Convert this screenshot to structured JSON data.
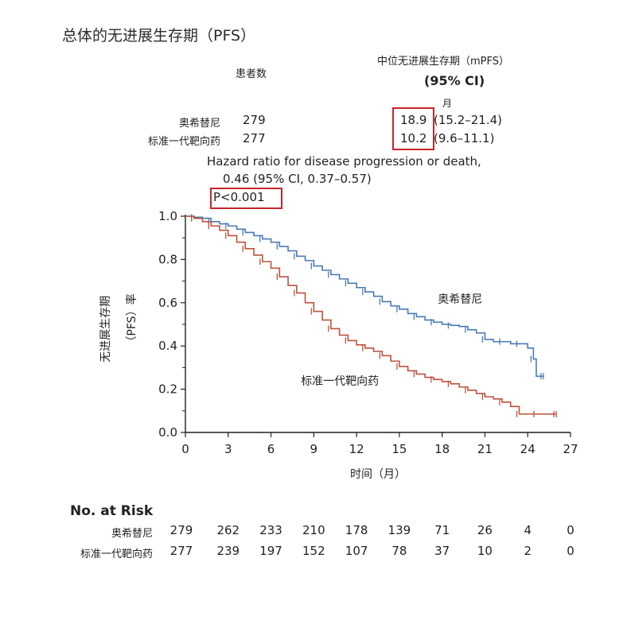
{
  "title": "总体的无进展生存期（PFS）",
  "header": {
    "patients": "患者数",
    "median": "中位无进展生存期（mPFS）",
    "ci": "(95% CI)",
    "month": "月"
  },
  "groups": [
    {
      "label": "奥希替尼",
      "n": "279",
      "median": "18.9",
      "ci": "(15.2–21.4)"
    },
    {
      "label": "标准一代靶向药",
      "n": "277",
      "median": "10.2",
      "ci": "(9.6–11.1)"
    }
  ],
  "hazard": {
    "line1": "Hazard ratio for disease progression or death,",
    "line2": "0.46 (95% CI, 0.37–0.57)",
    "p": "P<0.001"
  },
  "chart_data": {
    "type": "line",
    "ylabel_line1": "无进展生存期",
    "ylabel_line2": "（PFS）率",
    "xlabel": "时间（月）",
    "xlim": [
      0,
      27
    ],
    "ylim": [
      0,
      1.0
    ],
    "xticks": [
      0,
      3,
      6,
      9,
      12,
      15,
      18,
      21,
      24,
      27
    ],
    "yticks": [
      "0.0",
      "0.2",
      "0.4",
      "0.6",
      "0.8",
      "1.0"
    ],
    "series": [
      {
        "name": "奥希替尼",
        "color": "#4a7ab5",
        "x": [
          0,
          0.6,
          1.2,
          1.8,
          2.4,
          3.0,
          3.6,
          4.2,
          4.8,
          5.4,
          6.0,
          6.6,
          7.2,
          7.8,
          8.4,
          9.0,
          9.6,
          10.2,
          10.8,
          11.4,
          12.0,
          12.6,
          13.2,
          13.8,
          14.4,
          15.0,
          15.6,
          16.2,
          16.8,
          17.4,
          18.0,
          18.6,
          19.2,
          19.8,
          20.4,
          21.0,
          21.6,
          22.2,
          22.8,
          23.4,
          24.0,
          24.4,
          24.6,
          25.1
        ],
        "y": [
          1.0,
          0.995,
          0.99,
          0.975,
          0.965,
          0.955,
          0.94,
          0.925,
          0.91,
          0.895,
          0.88,
          0.86,
          0.84,
          0.815,
          0.795,
          0.77,
          0.75,
          0.73,
          0.71,
          0.69,
          0.67,
          0.65,
          0.63,
          0.605,
          0.585,
          0.57,
          0.55,
          0.535,
          0.52,
          0.51,
          0.5,
          0.495,
          0.49,
          0.475,
          0.46,
          0.43,
          0.42,
          0.42,
          0.41,
          0.41,
          0.39,
          0.34,
          0.26,
          0.26
        ]
      },
      {
        "name": "标准一代靶向药",
        "color": "#c0513c",
        "x": [
          0,
          0.6,
          1.2,
          1.8,
          2.4,
          3.0,
          3.6,
          4.2,
          4.8,
          5.4,
          6.0,
          6.6,
          7.2,
          7.8,
          8.4,
          9.0,
          9.6,
          10.2,
          10.8,
          11.4,
          12.0,
          12.6,
          13.2,
          13.8,
          14.4,
          15.0,
          15.6,
          16.2,
          16.8,
          17.4,
          18.0,
          18.6,
          19.2,
          19.8,
          20.4,
          21.0,
          21.6,
          22.2,
          22.8,
          23.4,
          24.0,
          24.6,
          25.2,
          26.0
        ],
        "y": [
          1.0,
          0.99,
          0.975,
          0.955,
          0.935,
          0.91,
          0.88,
          0.85,
          0.82,
          0.79,
          0.76,
          0.72,
          0.68,
          0.645,
          0.6,
          0.56,
          0.52,
          0.48,
          0.45,
          0.425,
          0.405,
          0.39,
          0.375,
          0.355,
          0.33,
          0.305,
          0.285,
          0.27,
          0.255,
          0.245,
          0.235,
          0.225,
          0.21,
          0.195,
          0.18,
          0.165,
          0.155,
          0.14,
          0.12,
          0.085,
          0.085,
          0.085,
          0.085,
          0.085
        ]
      }
    ],
    "annotations": [
      {
        "text": "奥希替尼",
        "x": 17.7,
        "y": 0.6
      },
      {
        "text": "标准一代靶向药",
        "x": 8.1,
        "y": 0.22
      }
    ]
  },
  "risk": {
    "title": "No. at Risk",
    "rows": [
      {
        "label": "奥希替尼",
        "values": [
          "279",
          "262",
          "233",
          "210",
          "178",
          "139",
          "71",
          "26",
          "4",
          "0"
        ]
      },
      {
        "label": "标准一代靶向药",
        "values": [
          "277",
          "239",
          "197",
          "152",
          "107",
          "78",
          "37",
          "10",
          "2",
          "0"
        ]
      }
    ]
  },
  "colors": {
    "highlight": "#c8242b",
    "axis": "#231f20"
  }
}
